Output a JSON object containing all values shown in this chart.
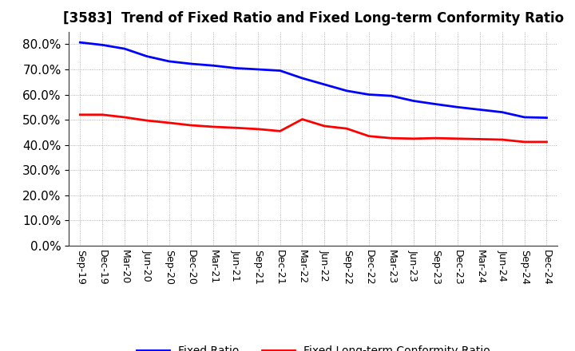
{
  "title": "[3583]  Trend of Fixed Ratio and Fixed Long-term Conformity Ratio",
  "x_labels": [
    "Sep-19",
    "Dec-19",
    "Mar-20",
    "Jun-20",
    "Sep-20",
    "Dec-20",
    "Mar-21",
    "Jun-21",
    "Sep-21",
    "Dec-21",
    "Mar-22",
    "Jun-22",
    "Sep-22",
    "Dec-22",
    "Mar-23",
    "Jun-23",
    "Sep-23",
    "Dec-23",
    "Mar-24",
    "Jun-24",
    "Sep-24",
    "Dec-24"
  ],
  "fixed_ratio": [
    0.807,
    0.797,
    0.782,
    0.752,
    0.732,
    0.722,
    0.715,
    0.705,
    0.7,
    0.695,
    0.665,
    0.64,
    0.615,
    0.6,
    0.595,
    0.575,
    0.562,
    0.55,
    0.54,
    0.53,
    0.51,
    0.508
  ],
  "fixed_lt_conformity": [
    0.52,
    0.52,
    0.51,
    0.497,
    0.488,
    0.478,
    0.472,
    0.468,
    0.463,
    0.455,
    0.502,
    0.475,
    0.465,
    0.435,
    0.427,
    0.425,
    0.427,
    0.425,
    0.423,
    0.421,
    0.412,
    0.412
  ],
  "fixed_ratio_color": "#0000FF",
  "fixed_lt_color": "#FF0000",
  "background_color": "#FFFFFF",
  "grid_color": "#999999",
  "ylim": [
    0.0,
    0.85
  ],
  "yticks": [
    0.0,
    0.1,
    0.2,
    0.3,
    0.4,
    0.5,
    0.6,
    0.7,
    0.8
  ],
  "legend_fixed_ratio": "Fixed Ratio",
  "legend_fixed_lt": "Fixed Long-term Conformity Ratio",
  "line_width": 2.0,
  "title_fontsize": 12,
  "ytick_fontsize": 11,
  "xtick_fontsize": 9,
  "legend_fontsize": 10
}
